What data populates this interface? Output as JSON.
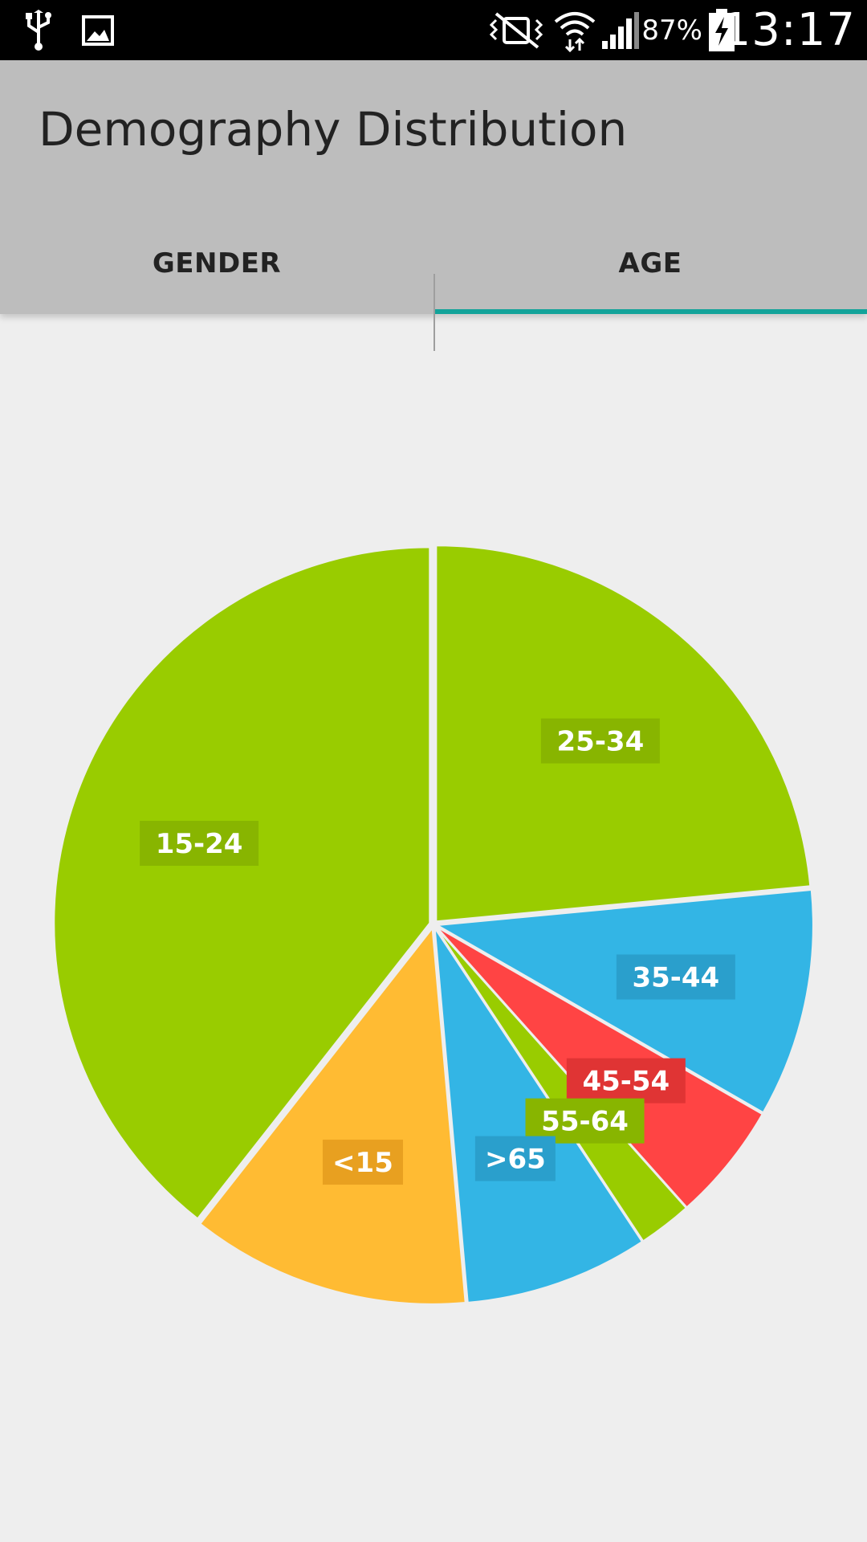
{
  "status_bar": {
    "battery_percent": "87%",
    "time": "13:17",
    "icons": [
      "usb-icon",
      "image-icon",
      "mute-vibrate-icon",
      "wifi-icon",
      "signal-icon",
      "battery-charging-icon"
    ]
  },
  "app_bar": {
    "title": "Demography Distribution",
    "tabs": [
      {
        "label": "GENDER",
        "selected": false
      },
      {
        "label": "AGE",
        "selected": true
      }
    ],
    "accent_color": "#13a39a"
  },
  "chart_data": {
    "type": "pie",
    "start_angle_deg": -90,
    "slices": [
      {
        "label": "25-34",
        "value": 23.5,
        "color": "#99cc00",
        "label_bg": "#88b500"
      },
      {
        "label": "35-44",
        "value": 9.8,
        "color": "#33b5e5",
        "label_bg": "#2a9fcc"
      },
      {
        "label": "45-54",
        "value": 5.1,
        "color": "#ff4444",
        "label_bg": "#e03434"
      },
      {
        "label": "55-64",
        "value": 2.3,
        "color": "#99cc00",
        "label_bg": "#88b500"
      },
      {
        "label": ">65",
        "value": 7.9,
        "color": "#33b5e5",
        "label_bg": "#2a9fcc"
      },
      {
        "label": "<15",
        "value": 12.0,
        "color": "#ffbb33",
        "label_bg": "#e8a020"
      },
      {
        "label": "15-24",
        "value": 39.4,
        "color": "#99cc00",
        "label_bg": "#88b500"
      }
    ]
  }
}
